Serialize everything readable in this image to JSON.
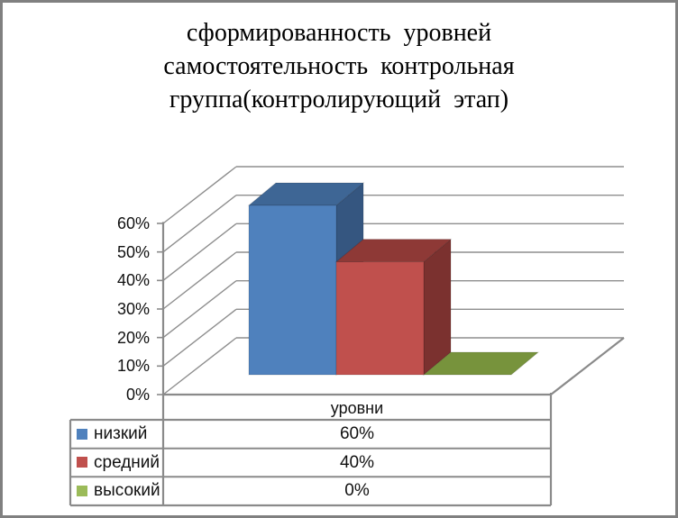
{
  "frame": {
    "background": "#ffffff",
    "border_color": "#808080"
  },
  "title": {
    "lines": [
      "сформированность  уровней",
      "самостоятельность  контрольная",
      "группа(контролирующий  этап)"
    ]
  },
  "chart_data": {
    "type": "bar",
    "projection": "3d",
    "title": "сформированность уровней самостоятельность контрольная группа(контролирующий этап)",
    "categories": [
      "уровни"
    ],
    "series": [
      {
        "name": "низкий",
        "value": 60,
        "label": "60%",
        "color_front": "#4F81BD",
        "color_top": "#3E6695",
        "color_side": "#355680",
        "key_color": "#4F81BD"
      },
      {
        "name": "средний",
        "value": 40,
        "label": "40%",
        "color_front": "#C0504D",
        "color_top": "#8E3936",
        "color_side": "#7B312F",
        "key_color": "#C0504D"
      },
      {
        "name": "высокий",
        "value": 0,
        "label": "0%",
        "color_front": "#9BBB59",
        "color_top": "#77933C",
        "color_side": "#5F7530",
        "key_color": "#9BBB59"
      }
    ],
    "y_ticks": [
      "60%",
      "50%",
      "40%",
      "30%",
      "20%",
      "10%",
      "0%"
    ],
    "ylim": [
      0,
      60
    ],
    "grid": true,
    "gridline_color": "#8E8E8E",
    "axis_line_color": "#8A8A8A",
    "axis_label": "уровни",
    "legend_position": "data-table-left"
  },
  "data_table": {
    "header": "уровни",
    "rows": [
      {
        "label": "низкий",
        "value": "60%"
      },
      {
        "label": "средний",
        "value": "40%"
      },
      {
        "label": "высокий",
        "value": "0%"
      }
    ],
    "border_color": "#8A8A8A"
  }
}
